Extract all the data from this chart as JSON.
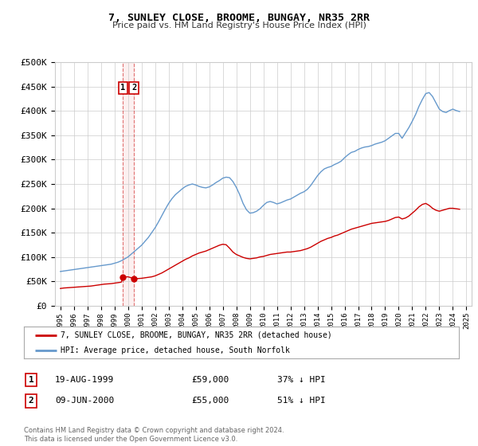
{
  "title": "7, SUNLEY CLOSE, BROOME, BUNGAY, NR35 2RR",
  "subtitle": "Price paid vs. HM Land Registry's House Price Index (HPI)",
  "legend_label_red": "7, SUNLEY CLOSE, BROOME, BUNGAY, NR35 2RR (detached house)",
  "legend_label_blue": "HPI: Average price, detached house, South Norfolk",
  "transaction1_label": "1",
  "transaction1_date": "19-AUG-1999",
  "transaction1_price": "£59,000",
  "transaction1_hpi": "37% ↓ HPI",
  "transaction1_year": 1999.63,
  "transaction1_value": 59000,
  "transaction2_label": "2",
  "transaction2_date": "09-JUN-2000",
  "transaction2_price": "£55,000",
  "transaction2_hpi": "51% ↓ HPI",
  "transaction2_year": 2000.44,
  "transaction2_value": 55000,
  "footnote": "Contains HM Land Registry data © Crown copyright and database right 2024.\nThis data is licensed under the Open Government Licence v3.0.",
  "red_color": "#cc0000",
  "blue_color": "#6699cc",
  "background_color": "#ffffff",
  "grid_color": "#cccccc",
  "ylim": [
    0,
    500000
  ],
  "xlim_start": 1994.6,
  "xlim_end": 2025.4,
  "hpi_x": [
    1995.0,
    1995.25,
    1995.5,
    1995.75,
    1996.0,
    1996.25,
    1996.5,
    1996.75,
    1997.0,
    1997.25,
    1997.5,
    1997.75,
    1998.0,
    1998.25,
    1998.5,
    1998.75,
    1999.0,
    1999.25,
    1999.5,
    1999.75,
    2000.0,
    2000.25,
    2000.5,
    2000.75,
    2001.0,
    2001.25,
    2001.5,
    2001.75,
    2002.0,
    2002.25,
    2002.5,
    2002.75,
    2003.0,
    2003.25,
    2003.5,
    2003.75,
    2004.0,
    2004.25,
    2004.5,
    2004.75,
    2005.0,
    2005.25,
    2005.5,
    2005.75,
    2006.0,
    2006.25,
    2006.5,
    2006.75,
    2007.0,
    2007.25,
    2007.5,
    2007.75,
    2008.0,
    2008.25,
    2008.5,
    2008.75,
    2009.0,
    2009.25,
    2009.5,
    2009.75,
    2010.0,
    2010.25,
    2010.5,
    2010.75,
    2011.0,
    2011.25,
    2011.5,
    2011.75,
    2012.0,
    2012.25,
    2012.5,
    2012.75,
    2013.0,
    2013.25,
    2013.5,
    2013.75,
    2014.0,
    2014.25,
    2014.5,
    2014.75,
    2015.0,
    2015.25,
    2015.5,
    2015.75,
    2016.0,
    2016.25,
    2016.5,
    2016.75,
    2017.0,
    2017.25,
    2017.5,
    2017.75,
    2018.0,
    2018.25,
    2018.5,
    2018.75,
    2019.0,
    2019.25,
    2019.5,
    2019.75,
    2020.0,
    2020.25,
    2020.5,
    2020.75,
    2021.0,
    2021.25,
    2021.5,
    2021.75,
    2022.0,
    2022.25,
    2022.5,
    2022.75,
    2023.0,
    2023.25,
    2023.5,
    2023.75,
    2024.0,
    2024.25,
    2024.5
  ],
  "hpi_y": [
    70000,
    71000,
    72000,
    73000,
    74000,
    75000,
    76000,
    77000,
    78000,
    79000,
    80000,
    81000,
    82000,
    83000,
    84000,
    85000,
    87000,
    89000,
    92000,
    96000,
    100000,
    106000,
    112000,
    118000,
    124000,
    132000,
    140000,
    150000,
    160000,
    172000,
    185000,
    198000,
    210000,
    220000,
    228000,
    234000,
    240000,
    245000,
    248000,
    250000,
    248000,
    245000,
    243000,
    242000,
    244000,
    248000,
    253000,
    257000,
    262000,
    264000,
    263000,
    255000,
    243000,
    228000,
    210000,
    197000,
    190000,
    191000,
    194000,
    199000,
    206000,
    212000,
    214000,
    212000,
    209000,
    211000,
    214000,
    217000,
    219000,
    223000,
    227000,
    231000,
    234000,
    239000,
    247000,
    257000,
    267000,
    275000,
    281000,
    284000,
    286000,
    290000,
    293000,
    297000,
    304000,
    310000,
    315000,
    317000,
    321000,
    324000,
    326000,
    327000,
    329000,
    332000,
    334000,
    336000,
    339000,
    344000,
    349000,
    354000,
    354000,
    344000,
    355000,
    366000,
    379000,
    393000,
    410000,
    424000,
    436000,
    438000,
    430000,
    417000,
    404000,
    399000,
    397000,
    401000,
    404000,
    401000,
    399000
  ],
  "red_x": [
    1995.0,
    1995.25,
    1995.5,
    1995.75,
    1996.0,
    1996.25,
    1996.5,
    1996.75,
    1997.0,
    1997.25,
    1997.5,
    1997.75,
    1998.0,
    1998.25,
    1998.5,
    1998.75,
    1999.0,
    1999.25,
    1999.5,
    1999.63,
    2000.0,
    2000.25,
    2000.44,
    2000.75,
    2001.0,
    2001.25,
    2001.5,
    2001.75,
    2002.0,
    2002.25,
    2002.5,
    2002.75,
    2003.0,
    2003.25,
    2003.5,
    2003.75,
    2004.0,
    2004.25,
    2004.5,
    2004.75,
    2005.0,
    2005.25,
    2005.5,
    2005.75,
    2006.0,
    2006.25,
    2006.5,
    2006.75,
    2007.0,
    2007.25,
    2007.5,
    2007.75,
    2008.0,
    2008.25,
    2008.5,
    2008.75,
    2009.0,
    2009.25,
    2009.5,
    2009.75,
    2010.0,
    2010.25,
    2010.5,
    2010.75,
    2011.0,
    2011.25,
    2011.5,
    2011.75,
    2012.0,
    2012.25,
    2012.5,
    2012.75,
    2013.0,
    2013.25,
    2013.5,
    2013.75,
    2014.0,
    2014.25,
    2014.5,
    2014.75,
    2015.0,
    2015.25,
    2015.5,
    2015.75,
    2016.0,
    2016.25,
    2016.5,
    2016.75,
    2017.0,
    2017.25,
    2017.5,
    2017.75,
    2018.0,
    2018.25,
    2018.5,
    2018.75,
    2019.0,
    2019.25,
    2019.5,
    2019.75,
    2020.0,
    2020.25,
    2020.5,
    2020.75,
    2021.0,
    2021.25,
    2021.5,
    2021.75,
    2022.0,
    2022.25,
    2022.5,
    2022.75,
    2023.0,
    2023.25,
    2023.5,
    2023.75,
    2024.0,
    2024.25,
    2024.5
  ],
  "red_y": [
    35000,
    36000,
    36500,
    37000,
    37500,
    38000,
    38500,
    39000,
    39500,
    40000,
    41000,
    42000,
    43000,
    44000,
    44500,
    45000,
    46000,
    47000,
    48000,
    59000,
    59000,
    57000,
    55000,
    55500,
    56000,
    57000,
    58000,
    59000,
    61000,
    64000,
    67000,
    71000,
    75000,
    79000,
    83000,
    87000,
    91000,
    95000,
    98000,
    102000,
    105000,
    108000,
    110000,
    112000,
    115000,
    118000,
    121000,
    124000,
    126000,
    125000,
    118000,
    110000,
    105000,
    102000,
    99000,
    97000,
    96000,
    97000,
    98000,
    100000,
    101000,
    103000,
    105000,
    106000,
    107000,
    108000,
    109000,
    110000,
    110000,
    111000,
    112000,
    113000,
    115000,
    117000,
    120000,
    124000,
    128000,
    132000,
    135000,
    138000,
    140000,
    143000,
    145000,
    148000,
    151000,
    154000,
    157000,
    159000,
    161000,
    163000,
    165000,
    167000,
    169000,
    170000,
    171000,
    172000,
    173000,
    175000,
    178000,
    181000,
    182000,
    178000,
    180000,
    184000,
    190000,
    196000,
    203000,
    208000,
    210000,
    206000,
    200000,
    196000,
    194000,
    196000,
    198000,
    200000,
    200000,
    199000,
    198000
  ]
}
